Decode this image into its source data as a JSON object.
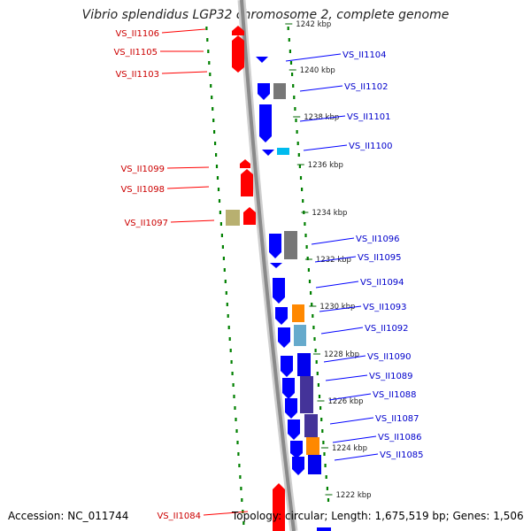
{
  "title": "Vibrio splendidus LGP32 chromosome 2, complete genome",
  "footer": {
    "accession": "Accession: NC_011744",
    "topology": "Topology: circular; Length: 1,675,519 bp; Genes: 1,506"
  },
  "colors": {
    "forward": "#ff0000",
    "reverse": "#0000ff",
    "backbone": "#999999",
    "dots": "#008000",
    "label_forward": "#cc0000",
    "label_reverse": "#0000cc"
  },
  "scale_ticks": [
    {
      "label": "1242 kbp",
      "pos_kbp": 1242
    },
    {
      "label": "1240 kbp",
      "pos_kbp": 1240
    },
    {
      "label": "1238 kbp",
      "pos_kbp": 1238
    },
    {
      "label": "1236 kbp",
      "pos_kbp": 1236
    },
    {
      "label": "1234 kbp",
      "pos_kbp": 1234
    },
    {
      "label": "1232 kbp",
      "pos_kbp": 1232
    },
    {
      "label": "1230 kbp",
      "pos_kbp": 1230
    },
    {
      "label": "1228 kbp",
      "pos_kbp": 1228
    },
    {
      "label": "1226 kbp",
      "pos_kbp": 1226
    },
    {
      "label": "1224 kbp",
      "pos_kbp": 1224
    },
    {
      "label": "1222 kbp",
      "pos_kbp": 1222
    }
  ],
  "genes_forward": [
    {
      "label": "VS_II1106"
    },
    {
      "label": "VS_II1105"
    },
    {
      "label": "VS_II1103"
    },
    {
      "label": "VS_II1099"
    },
    {
      "label": "VS_II1098"
    },
    {
      "label": "VS_II1097"
    },
    {
      "label": "VS_II1084"
    }
  ],
  "genes_reverse": [
    {
      "label": "VS_II1104"
    },
    {
      "label": "VS_II1102"
    },
    {
      "label": "VS_II1101"
    },
    {
      "label": "VS_II1100"
    },
    {
      "label": "VS_II1096"
    },
    {
      "label": "VS_II1095"
    },
    {
      "label": "VS_II1094"
    },
    {
      "label": "VS_II1093"
    },
    {
      "label": "VS_II1092"
    },
    {
      "label": "VS_II1090"
    },
    {
      "label": "VS_II1089"
    },
    {
      "label": "VS_II1088"
    },
    {
      "label": "VS_II1087"
    },
    {
      "label": "VS_II1086"
    },
    {
      "label": "VS_II1085"
    }
  ]
}
